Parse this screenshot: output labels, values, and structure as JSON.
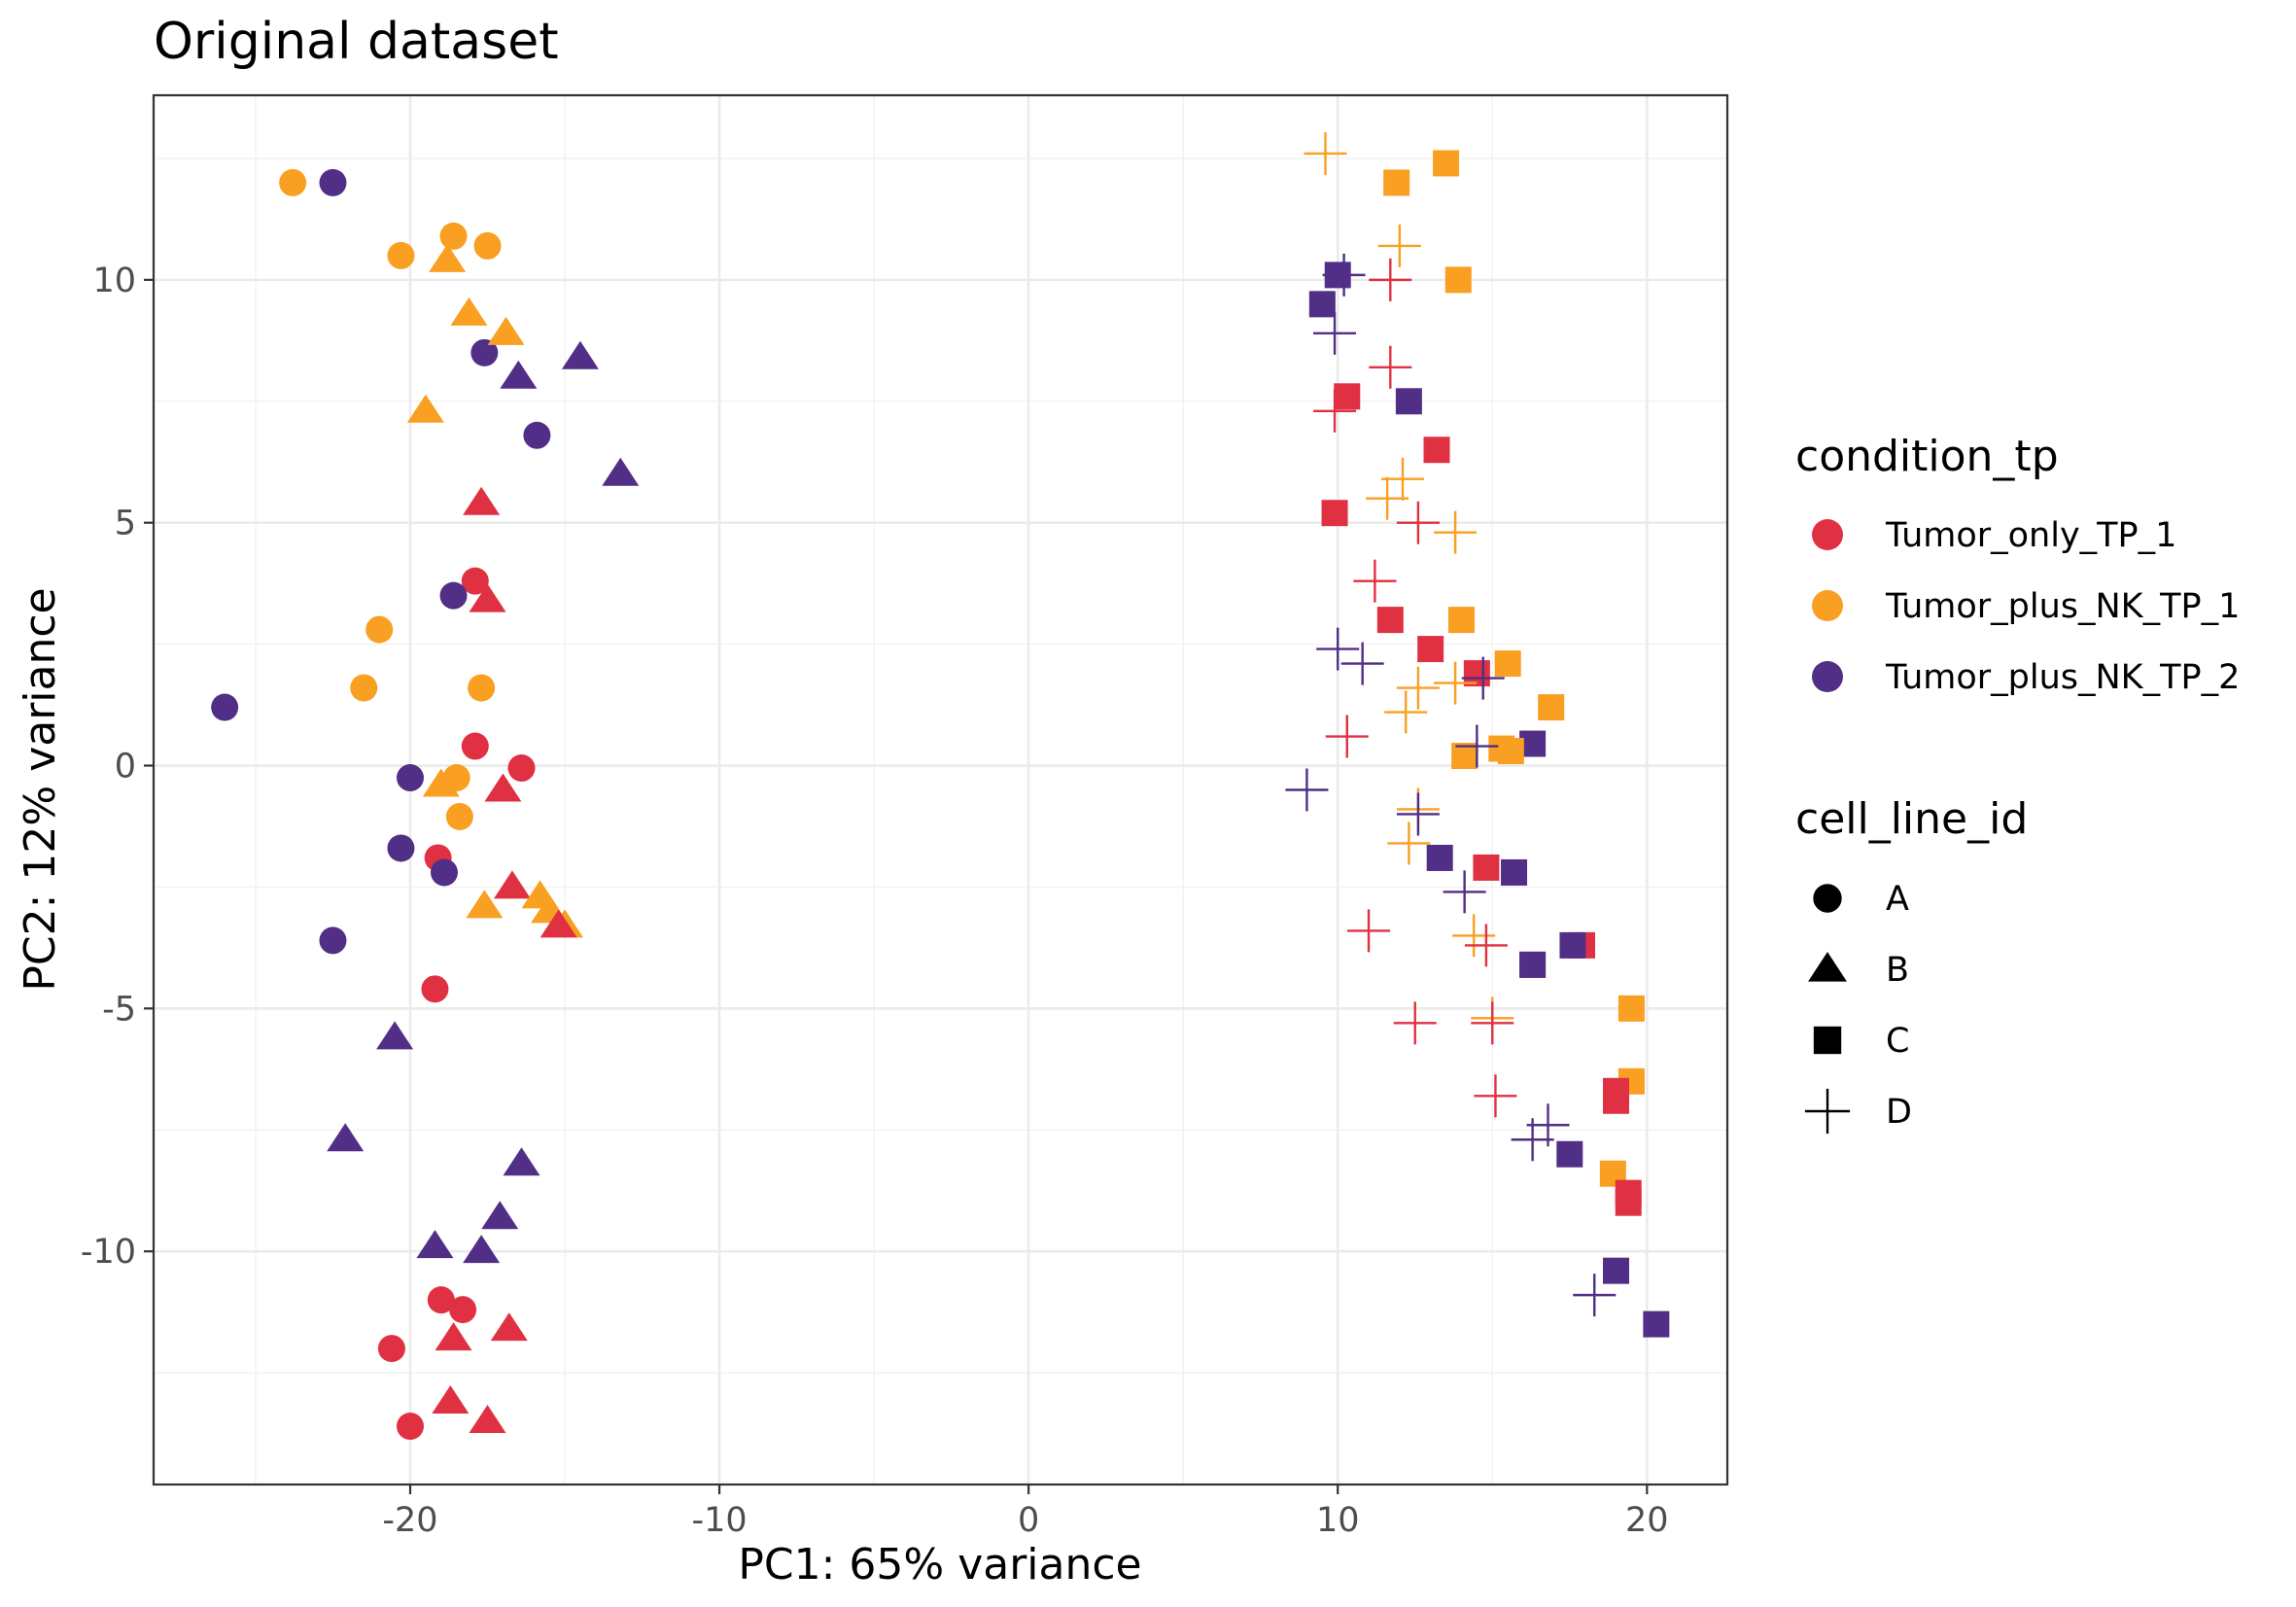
{
  "chart_data": {
    "type": "scatter",
    "title": "Original dataset",
    "xlabel": "PC1: 65% variance",
    "ylabel": "PC2: 12% variance",
    "xlim": [
      -28.3,
      22.6
    ],
    "ylim": [
      -14.8,
      13.8
    ],
    "x_ticks": [
      -20,
      -10,
      0,
      10,
      20
    ],
    "x_tick_labels": [
      "-20",
      "-10",
      "0",
      "10",
      "20"
    ],
    "y_ticks": [
      -10,
      -5,
      0,
      5,
      10
    ],
    "y_tick_labels": [
      "-10",
      "-5",
      "0",
      "5",
      "10"
    ],
    "grid": true,
    "legend_placement": "right",
    "color_legend": {
      "title": "condition_tp",
      "entries": [
        {
          "key": "T1",
          "label": "Tumor_only_TP_1",
          "color": "#E03143"
        },
        {
          "key": "N1",
          "label": "Tumor_plus_NK_TP_1",
          "color": "#F99F21"
        },
        {
          "key": "N2",
          "label": "Tumor_plus_NK_TP_2",
          "color": "#512F86"
        }
      ]
    },
    "shape_legend": {
      "title": "cell_line_id",
      "entries": [
        {
          "key": "A",
          "label": "A",
          "shape": "circle"
        },
        {
          "key": "B",
          "label": "B",
          "shape": "triangle"
        },
        {
          "key": "C",
          "label": "C",
          "shape": "square"
        },
        {
          "key": "D",
          "label": "D",
          "shape": "plus"
        }
      ]
    },
    "points": [
      {
        "x": -23.8,
        "y": 12.0,
        "c": "N1",
        "s": "A"
      },
      {
        "x": -22.5,
        "y": 12.0,
        "c": "N2",
        "s": "A"
      },
      {
        "x": -20.3,
        "y": 10.5,
        "c": "N1",
        "s": "A"
      },
      {
        "x": -18.6,
        "y": 10.9,
        "c": "N1",
        "s": "A"
      },
      {
        "x": -17.5,
        "y": 10.7,
        "c": "N1",
        "s": "A"
      },
      {
        "x": -17.6,
        "y": 8.5,
        "c": "N2",
        "s": "A"
      },
      {
        "x": -15.9,
        "y": 6.8,
        "c": "N2",
        "s": "A"
      },
      {
        "x": -17.9,
        "y": 3.8,
        "c": "T1",
        "s": "A"
      },
      {
        "x": -18.6,
        "y": 3.5,
        "c": "N2",
        "s": "A"
      },
      {
        "x": -21.0,
        "y": 2.8,
        "c": "N1",
        "s": "A"
      },
      {
        "x": -21.5,
        "y": 1.6,
        "c": "N1",
        "s": "A"
      },
      {
        "x": -17.7,
        "y": 1.6,
        "c": "N1",
        "s": "A"
      },
      {
        "x": -26.0,
        "y": 1.2,
        "c": "N2",
        "s": "A"
      },
      {
        "x": -17.9,
        "y": 0.4,
        "c": "T1",
        "s": "A"
      },
      {
        "x": -16.4,
        "y": -0.05,
        "c": "T1",
        "s": "A"
      },
      {
        "x": -20.0,
        "y": -0.25,
        "c": "N2",
        "s": "A"
      },
      {
        "x": -18.5,
        "y": -0.25,
        "c": "N1",
        "s": "A"
      },
      {
        "x": -18.4,
        "y": -1.05,
        "c": "N1",
        "s": "A"
      },
      {
        "x": -20.3,
        "y": -1.7,
        "c": "N2",
        "s": "A"
      },
      {
        "x": -19.1,
        "y": -1.9,
        "c": "T1",
        "s": "A"
      },
      {
        "x": -18.9,
        "y": -2.2,
        "c": "N2",
        "s": "A"
      },
      {
        "x": -22.5,
        "y": -3.6,
        "c": "N2",
        "s": "A"
      },
      {
        "x": -19.2,
        "y": -4.6,
        "c": "T1",
        "s": "A"
      },
      {
        "x": -19.0,
        "y": -11.0,
        "c": "T1",
        "s": "A"
      },
      {
        "x": -18.3,
        "y": -11.2,
        "c": "T1",
        "s": "A"
      },
      {
        "x": -20.6,
        "y": -12.0,
        "c": "T1",
        "s": "A"
      },
      {
        "x": -20.0,
        "y": -13.6,
        "c": "T1",
        "s": "A"
      },
      {
        "x": -18.8,
        "y": 10.4,
        "c": "N1",
        "s": "B"
      },
      {
        "x": -18.1,
        "y": 9.3,
        "c": "N1",
        "s": "B"
      },
      {
        "x": -16.9,
        "y": 8.9,
        "c": "N1",
        "s": "B"
      },
      {
        "x": -14.5,
        "y": 8.4,
        "c": "N2",
        "s": "B"
      },
      {
        "x": -16.5,
        "y": 8.0,
        "c": "N2",
        "s": "B"
      },
      {
        "x": -19.5,
        "y": 7.3,
        "c": "N1",
        "s": "B"
      },
      {
        "x": -13.2,
        "y": 6.0,
        "c": "N2",
        "s": "B"
      },
      {
        "x": -17.7,
        "y": 5.4,
        "c": "T1",
        "s": "B"
      },
      {
        "x": -17.5,
        "y": 3.4,
        "c": "T1",
        "s": "B"
      },
      {
        "x": -19.0,
        "y": -0.4,
        "c": "N1",
        "s": "B"
      },
      {
        "x": -17.0,
        "y": -0.5,
        "c": "T1",
        "s": "B"
      },
      {
        "x": -16.7,
        "y": -2.5,
        "c": "T1",
        "s": "B"
      },
      {
        "x": -15.8,
        "y": -2.7,
        "c": "N1",
        "s": "B"
      },
      {
        "x": -17.6,
        "y": -2.9,
        "c": "N1",
        "s": "B"
      },
      {
        "x": -15.5,
        "y": -3.0,
        "c": "N1",
        "s": "B"
      },
      {
        "x": -15.0,
        "y": -3.3,
        "c": "N1",
        "s": "B"
      },
      {
        "x": -15.2,
        "y": -3.3,
        "c": "T1",
        "s": "B"
      },
      {
        "x": -20.5,
        "y": -5.6,
        "c": "N2",
        "s": "B"
      },
      {
        "x": -22.1,
        "y": -7.7,
        "c": "N2",
        "s": "B"
      },
      {
        "x": -16.4,
        "y": -8.2,
        "c": "N2",
        "s": "B"
      },
      {
        "x": -17.1,
        "y": -9.3,
        "c": "N2",
        "s": "B"
      },
      {
        "x": -19.2,
        "y": -9.9,
        "c": "N2",
        "s": "B"
      },
      {
        "x": -17.7,
        "y": -10.0,
        "c": "N2",
        "s": "B"
      },
      {
        "x": -16.8,
        "y": -11.6,
        "c": "T1",
        "s": "B"
      },
      {
        "x": -18.6,
        "y": -11.8,
        "c": "T1",
        "s": "B"
      },
      {
        "x": -18.7,
        "y": -13.1,
        "c": "T1",
        "s": "B"
      },
      {
        "x": -17.5,
        "y": -13.5,
        "c": "T1",
        "s": "B"
      },
      {
        "x": 13.5,
        "y": 12.4,
        "c": "N1",
        "s": "C"
      },
      {
        "x": 11.9,
        "y": 12.0,
        "c": "N1",
        "s": "C"
      },
      {
        "x": 10.0,
        "y": 10.1,
        "c": "N2",
        "s": "C"
      },
      {
        "x": 13.9,
        "y": 10.0,
        "c": "N1",
        "s": "C"
      },
      {
        "x": 9.5,
        "y": 9.5,
        "c": "N2",
        "s": "C"
      },
      {
        "x": 10.3,
        "y": 7.6,
        "c": "T1",
        "s": "C"
      },
      {
        "x": 12.3,
        "y": 7.5,
        "c": "N2",
        "s": "C"
      },
      {
        "x": 13.2,
        "y": 6.5,
        "c": "T1",
        "s": "C"
      },
      {
        "x": 9.9,
        "y": 5.2,
        "c": "T1",
        "s": "C"
      },
      {
        "x": 11.7,
        "y": 3.0,
        "c": "T1",
        "s": "C"
      },
      {
        "x": 14.0,
        "y": 3.0,
        "c": "N1",
        "s": "C"
      },
      {
        "x": 13.0,
        "y": 2.4,
        "c": "T1",
        "s": "C"
      },
      {
        "x": 15.5,
        "y": 2.1,
        "c": "N1",
        "s": "C"
      },
      {
        "x": 14.5,
        "y": 1.9,
        "c": "T1",
        "s": "C"
      },
      {
        "x": 16.9,
        "y": 1.2,
        "c": "N1",
        "s": "C"
      },
      {
        "x": 16.3,
        "y": 0.45,
        "c": "N2",
        "s": "C"
      },
      {
        "x": 15.3,
        "y": 0.35,
        "c": "N1",
        "s": "C"
      },
      {
        "x": 15.6,
        "y": 0.3,
        "c": "N1",
        "s": "C"
      },
      {
        "x": 14.1,
        "y": 0.2,
        "c": "N1",
        "s": "C"
      },
      {
        "x": 13.3,
        "y": -1.9,
        "c": "N2",
        "s": "C"
      },
      {
        "x": 14.8,
        "y": -2.1,
        "c": "T1",
        "s": "C"
      },
      {
        "x": 15.7,
        "y": -2.2,
        "c": "N2",
        "s": "C"
      },
      {
        "x": 17.9,
        "y": -3.7,
        "c": "T1",
        "s": "C"
      },
      {
        "x": 17.6,
        "y": -3.7,
        "c": "N2",
        "s": "C"
      },
      {
        "x": 16.3,
        "y": -4.1,
        "c": "T1",
        "s": "C"
      },
      {
        "x": 16.3,
        "y": -4.1,
        "c": "N2",
        "s": "C"
      },
      {
        "x": 19.5,
        "y": -5.0,
        "c": "N1",
        "s": "C"
      },
      {
        "x": 19.5,
        "y": -6.5,
        "c": "N1",
        "s": "C"
      },
      {
        "x": 19.0,
        "y": -6.7,
        "c": "T1",
        "s": "C"
      },
      {
        "x": 19.0,
        "y": -6.9,
        "c": "T1",
        "s": "C"
      },
      {
        "x": 17.5,
        "y": -8.0,
        "c": "N2",
        "s": "C"
      },
      {
        "x": 18.9,
        "y": -8.4,
        "c": "N1",
        "s": "C"
      },
      {
        "x": 19.4,
        "y": -8.8,
        "c": "T1",
        "s": "C"
      },
      {
        "x": 19.4,
        "y": -9.0,
        "c": "T1",
        "s": "C"
      },
      {
        "x": 19.0,
        "y": -10.4,
        "c": "N2",
        "s": "C"
      },
      {
        "x": 20.3,
        "y": -11.5,
        "c": "N2",
        "s": "C"
      },
      {
        "x": 9.6,
        "y": 12.6,
        "c": "N1",
        "s": "D"
      },
      {
        "x": 12.0,
        "y": 10.7,
        "c": "N1",
        "s": "D"
      },
      {
        "x": 10.2,
        "y": 10.1,
        "c": "N2",
        "s": "D"
      },
      {
        "x": 11.7,
        "y": 10.0,
        "c": "T1",
        "s": "D"
      },
      {
        "x": 9.9,
        "y": 8.9,
        "c": "N2",
        "s": "D"
      },
      {
        "x": 11.7,
        "y": 8.2,
        "c": "T1",
        "s": "D"
      },
      {
        "x": 9.9,
        "y": 7.3,
        "c": "T1",
        "s": "D"
      },
      {
        "x": 12.1,
        "y": 5.9,
        "c": "N1",
        "s": "D"
      },
      {
        "x": 11.6,
        "y": 5.5,
        "c": "N1",
        "s": "D"
      },
      {
        "x": 12.6,
        "y": 5.0,
        "c": "T1",
        "s": "D"
      },
      {
        "x": 13.8,
        "y": 4.8,
        "c": "N1",
        "s": "D"
      },
      {
        "x": 11.2,
        "y": 3.8,
        "c": "T1",
        "s": "D"
      },
      {
        "x": 10.0,
        "y": 2.4,
        "c": "N2",
        "s": "D"
      },
      {
        "x": 10.8,
        "y": 2.1,
        "c": "N2",
        "s": "D"
      },
      {
        "x": 14.7,
        "y": 1.8,
        "c": "N2",
        "s": "D"
      },
      {
        "x": 13.8,
        "y": 1.7,
        "c": "N1",
        "s": "D"
      },
      {
        "x": 12.6,
        "y": 1.6,
        "c": "N1",
        "s": "D"
      },
      {
        "x": 12.2,
        "y": 1.1,
        "c": "N1",
        "s": "D"
      },
      {
        "x": 10.3,
        "y": 0.6,
        "c": "T1",
        "s": "D"
      },
      {
        "x": 14.5,
        "y": 0.4,
        "c": "N2",
        "s": "D"
      },
      {
        "x": 9.0,
        "y": -0.5,
        "c": "N2",
        "s": "D"
      },
      {
        "x": 12.6,
        "y": -0.9,
        "c": "N1",
        "s": "D"
      },
      {
        "x": 12.6,
        "y": -1.0,
        "c": "N2",
        "s": "D"
      },
      {
        "x": 12.3,
        "y": -1.6,
        "c": "N1",
        "s": "D"
      },
      {
        "x": 14.1,
        "y": -2.6,
        "c": "N2",
        "s": "D"
      },
      {
        "x": 11.0,
        "y": -3.4,
        "c": "T1",
        "s": "D"
      },
      {
        "x": 14.4,
        "y": -3.5,
        "c": "N1",
        "s": "D"
      },
      {
        "x": 14.8,
        "y": -3.7,
        "c": "T1",
        "s": "D"
      },
      {
        "x": 15.0,
        "y": -5.2,
        "c": "N1",
        "s": "D"
      },
      {
        "x": 12.5,
        "y": -5.3,
        "c": "T1",
        "s": "D"
      },
      {
        "x": 15.0,
        "y": -5.3,
        "c": "T1",
        "s": "D"
      },
      {
        "x": 15.1,
        "y": -6.8,
        "c": "T1",
        "s": "D"
      },
      {
        "x": 16.8,
        "y": -7.4,
        "c": "N2",
        "s": "D"
      },
      {
        "x": 16.3,
        "y": -7.7,
        "c": "N2",
        "s": "D"
      },
      {
        "x": 18.3,
        "y": -10.9,
        "c": "N2",
        "s": "D"
      }
    ]
  }
}
